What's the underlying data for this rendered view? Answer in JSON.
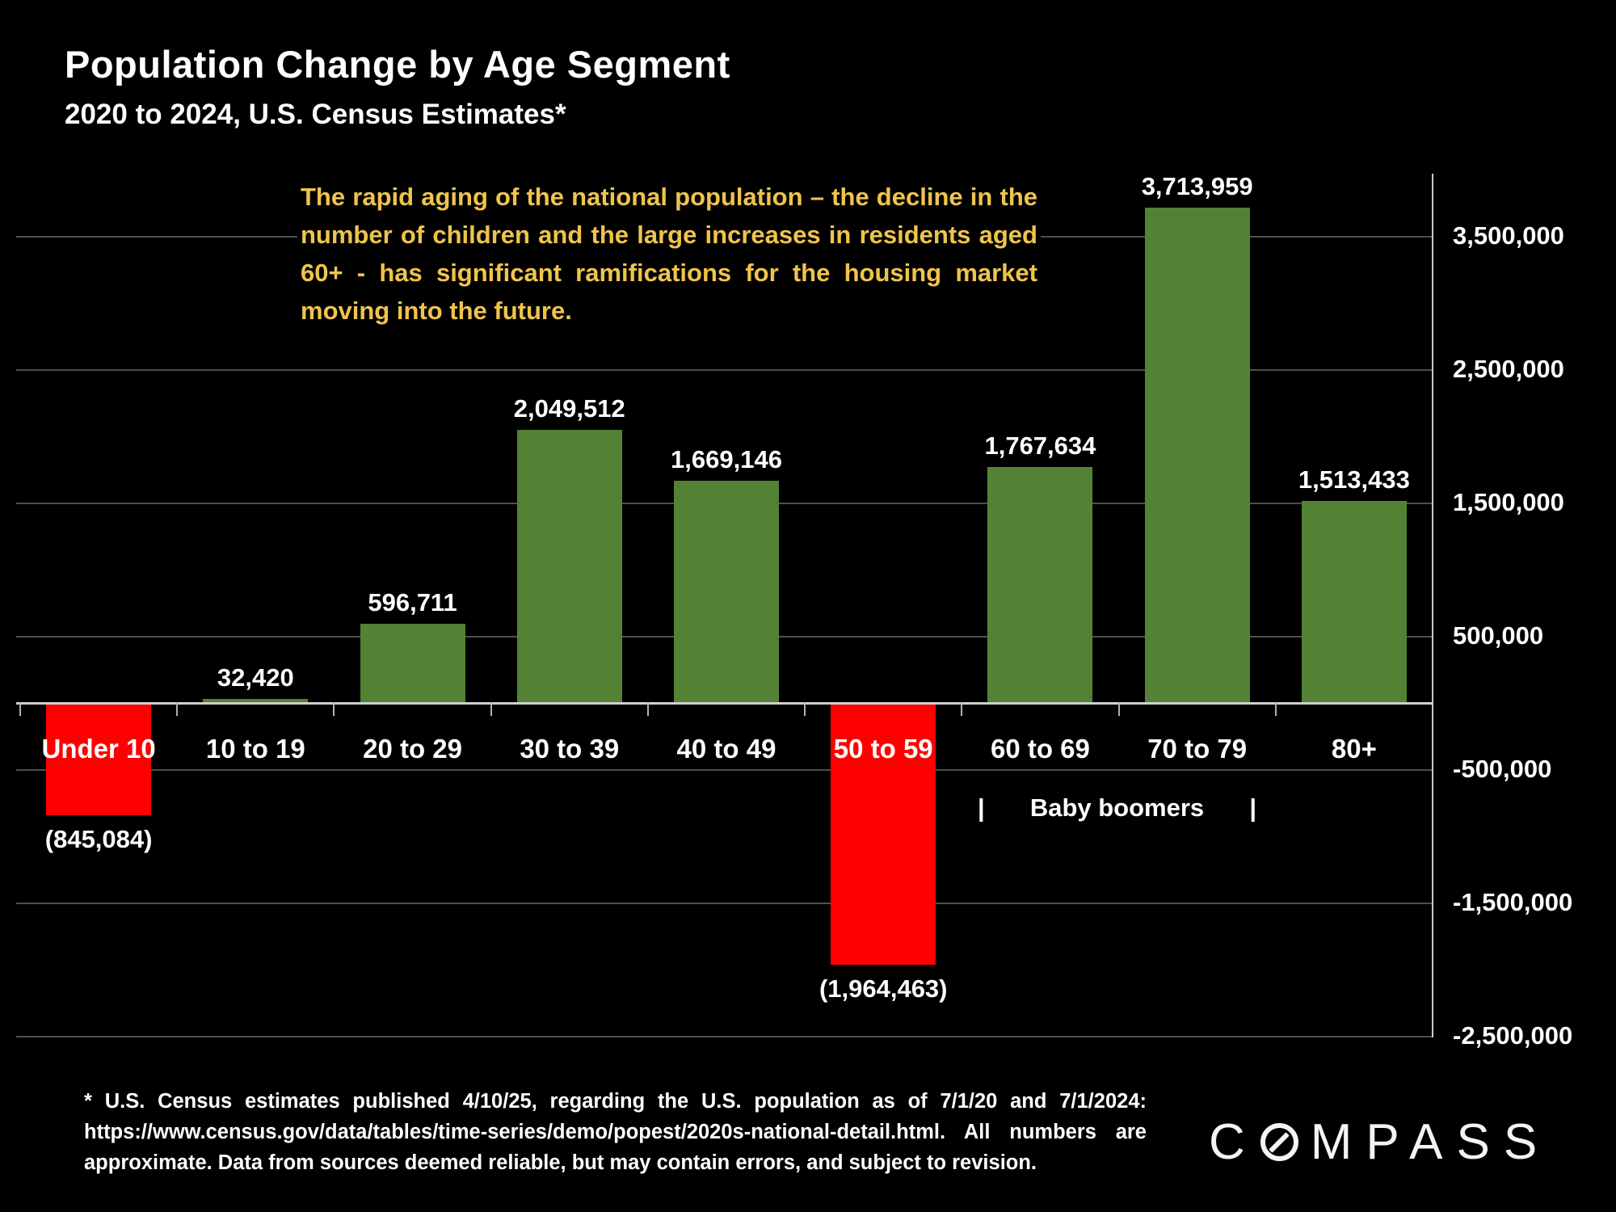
{
  "title": "Population Change by Age Segment",
  "subtitle": "2020 to 2024, U.S. Census Estimates*",
  "annotation": "The rapid aging of the national population – the decline in the number of children and the large increases in residents aged 60+ - has significant ramifications for the housing market moving into the future.",
  "boomers": {
    "left_pipe": "|",
    "label": "Baby boomers",
    "right_pipe": "|"
  },
  "footnote": "* U.S. Census estimates published 4/10/25, regarding the U.S. population as of 7/1/20 and 7/1/2024: https://www.census.gov/data/tables/time-series/demo/popest/2020s-national-detail.html. All numbers are approximate. Data from sources deemed reliable, but may contain errors, and subject to revision.",
  "logo": {
    "pre": "C",
    "post": "MPASS",
    "o_icon": "compass-needle-icon"
  },
  "colors": {
    "background": "#000000",
    "positive_bar": "#548235",
    "negative_bar": "#FF0000",
    "annotation_text": "#EFC44D",
    "gridline": "#4F4F4F",
    "axis_line": "#C9C9C9",
    "text": "#FFFFFF"
  },
  "chart_data": {
    "type": "bar",
    "title": "Population Change by Age Segment",
    "subtitle": "2020 to 2024, U.S. Census Estimates*",
    "categories": [
      "Under 10",
      "10 to 19",
      "20 to 29",
      "30 to 39",
      "40 to 49",
      "50 to 59",
      "60 to 69",
      "70 to 79",
      "80+"
    ],
    "values": [
      -845084,
      32420,
      596711,
      2049512,
      1669146,
      -1964463,
      1767634,
      3713959,
      1513433
    ],
    "value_labels": [
      "(845,084)",
      "32,420",
      "596,711",
      "2,049,512",
      "1,669,146",
      "(1,964,463)",
      "1,767,634",
      "3,713,959",
      "1,513,433"
    ],
    "bar_colors": [
      "negative",
      "positive",
      "positive",
      "positive",
      "positive",
      "negative",
      "positive",
      "positive",
      "positive"
    ],
    "xlabel": "",
    "ylabel": "",
    "y_ticks": [
      3500000,
      2500000,
      1500000,
      500000,
      -500000,
      -1500000,
      -2500000
    ],
    "y_tick_labels": [
      "3,500,000",
      "2,500,000",
      "1,500,000",
      "500,000",
      "-500,000",
      "-1,500,000",
      "-2,500,000"
    ],
    "ylim": [
      -2600000,
      4000000
    ],
    "grid": true,
    "legend": false,
    "group_annotation": {
      "label": "Baby boomers",
      "covers": [
        "60 to 69",
        "70 to 79"
      ]
    }
  }
}
